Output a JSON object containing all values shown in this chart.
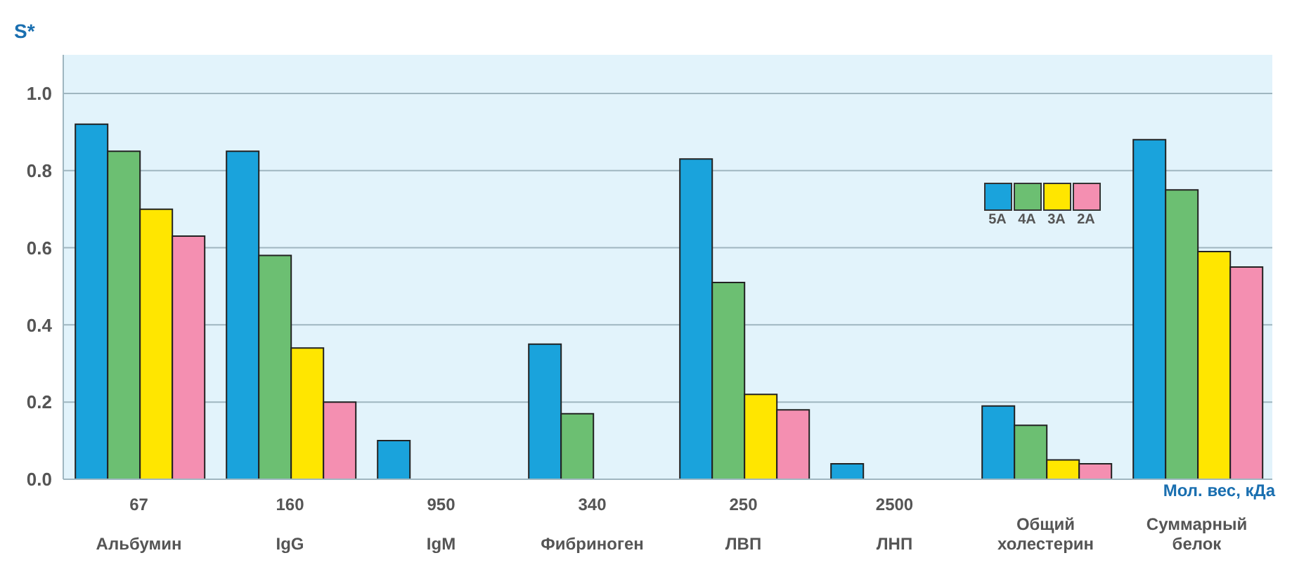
{
  "chart_data": {
    "type": "bar",
    "ylabel": "S*",
    "xlabel": "Мол. вес, кДа",
    "categories": [
      "67\nАльбумин",
      "160\nIgG",
      "950\nIgM",
      "340\nФибриноген",
      "250\nЛВП",
      "2500\nЛНП",
      "Общий холестерин",
      "Суммарный белок"
    ],
    "series": [
      {
        "name": "5A",
        "color": "#1aa3dc",
        "values": [
          0.92,
          0.85,
          0.1,
          0.35,
          0.83,
          0.04,
          0.19,
          0.88
        ]
      },
      {
        "name": "4A",
        "color": "#6cbf72",
        "values": [
          0.85,
          0.58,
          null,
          0.17,
          0.51,
          null,
          0.14,
          0.75
        ]
      },
      {
        "name": "3A",
        "color": "#ffe600",
        "values": [
          0.7,
          0.34,
          null,
          null,
          0.22,
          null,
          0.05,
          0.59
        ]
      },
      {
        "name": "2A",
        "color": "#f48fb1",
        "values": [
          0.63,
          0.2,
          null,
          null,
          0.18,
          null,
          0.04,
          0.55
        ]
      }
    ],
    "ylim": [
      0,
      1.1
    ],
    "yticks": [
      {
        "value": 0,
        "label": "0.0"
      },
      {
        "value": 0.2,
        "label": "0.2"
      },
      {
        "value": 0.4,
        "label": "0.4"
      },
      {
        "value": 0.6,
        "label": "0.6"
      },
      {
        "value": 0.8,
        "label": "0.8"
      },
      {
        "value": 1.0,
        "label": "1.0"
      }
    ],
    "grid": "y",
    "legend": "top right"
  }
}
